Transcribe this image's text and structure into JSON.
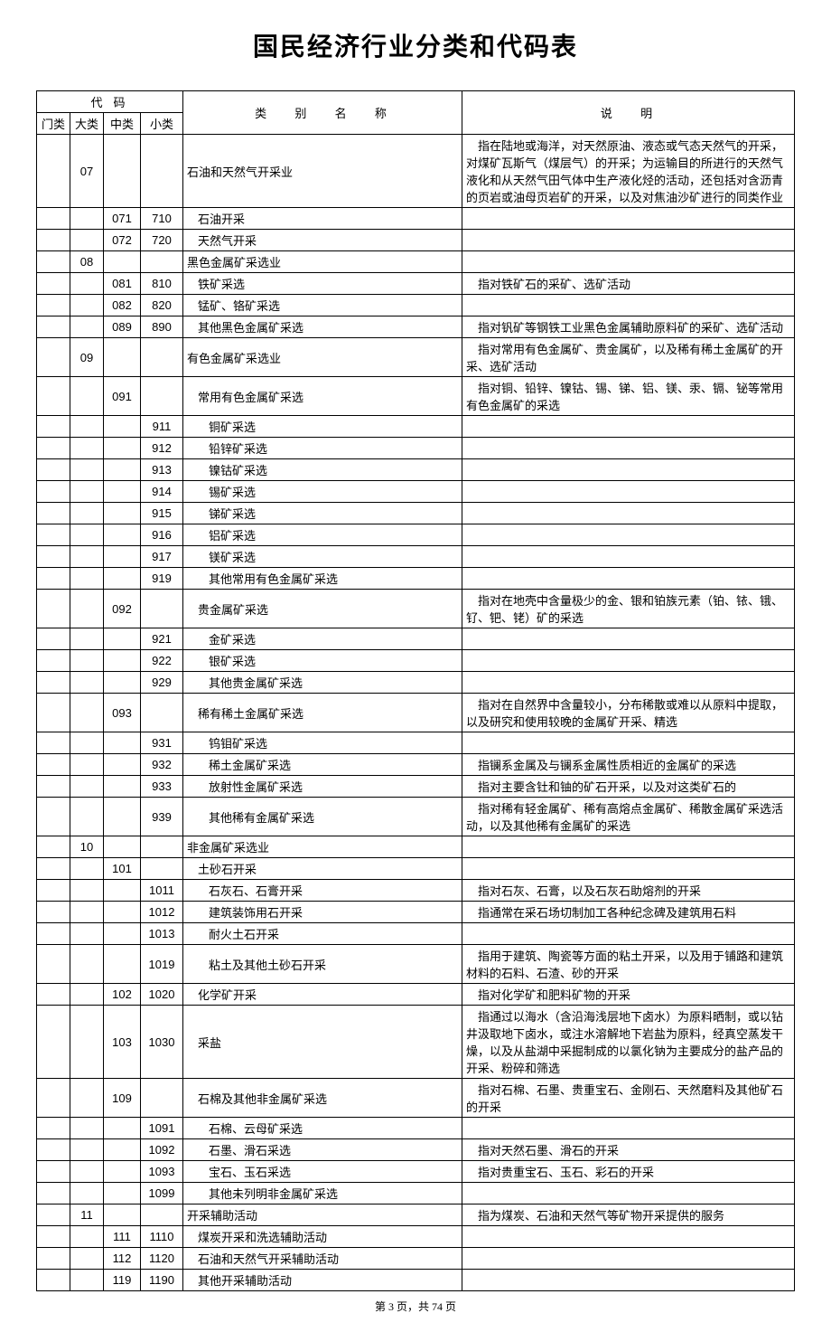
{
  "title": "国民经济行业分类和代码表",
  "headers": {
    "code_group": "代码",
    "menlei": "门类",
    "dalei": "大类",
    "zhonglei": "中类",
    "xiaolei": "小类",
    "name": "类 别 名 称",
    "desc": "说  明"
  },
  "footer": "第 3 页，共 74 页",
  "rows": [
    {
      "c1": "",
      "c2": "07",
      "c3": "",
      "c4": "",
      "name": "石油和天然气开采业",
      "indent": 0,
      "desc": "　指在陆地或海洋，对天然原油、液态或气态天然气的开采，对煤矿瓦斯气（煤层气）的开采；为运输目的所进行的天然气液化和从天然气田气体中生产液化烃的活动，还包括对含沥青的页岩或油母页岩矿的开采，以及对焦油沙矿进行的同类作业"
    },
    {
      "c1": "",
      "c2": "",
      "c3": "071",
      "c4": "710",
      "name": "石油开采",
      "indent": 1,
      "desc": ""
    },
    {
      "c1": "",
      "c2": "",
      "c3": "072",
      "c4": "720",
      "name": "天然气开采",
      "indent": 1,
      "desc": ""
    },
    {
      "c1": "",
      "c2": "08",
      "c3": "",
      "c4": "",
      "name": "黑色金属矿采选业",
      "indent": 0,
      "desc": ""
    },
    {
      "c1": "",
      "c2": "",
      "c3": "081",
      "c4": "810",
      "name": "铁矿采选",
      "indent": 1,
      "desc": "　指对铁矿石的采矿、选矿活动"
    },
    {
      "c1": "",
      "c2": "",
      "c3": "082",
      "c4": "820",
      "name": "锰矿、铬矿采选",
      "indent": 1,
      "desc": ""
    },
    {
      "c1": "",
      "c2": "",
      "c3": "089",
      "c4": "890",
      "name": "其他黑色金属矿采选",
      "indent": 1,
      "desc": "　指对钒矿等钢铁工业黑色金属辅助原料矿的采矿、选矿活动"
    },
    {
      "c1": "",
      "c2": "09",
      "c3": "",
      "c4": "",
      "name": "有色金属矿采选业",
      "indent": 0,
      "desc": "　指对常用有色金属矿、贵金属矿，以及稀有稀土金属矿的开采、选矿活动"
    },
    {
      "c1": "",
      "c2": "",
      "c3": "091",
      "c4": "",
      "name": "常用有色金属矿采选",
      "indent": 1,
      "desc": "　指对铜、铅锌、镍钴、锡、锑、铝、镁、汞、镉、铋等常用有色金属矿的采选"
    },
    {
      "c1": "",
      "c2": "",
      "c3": "",
      "c4": "911",
      "name": "铜矿采选",
      "indent": 2,
      "desc": ""
    },
    {
      "c1": "",
      "c2": "",
      "c3": "",
      "c4": "912",
      "name": "铅锌矿采选",
      "indent": 2,
      "desc": ""
    },
    {
      "c1": "",
      "c2": "",
      "c3": "",
      "c4": "913",
      "name": "镍钴矿采选",
      "indent": 2,
      "desc": ""
    },
    {
      "c1": "",
      "c2": "",
      "c3": "",
      "c4": "914",
      "name": "锡矿采选",
      "indent": 2,
      "desc": ""
    },
    {
      "c1": "",
      "c2": "",
      "c3": "",
      "c4": "915",
      "name": "锑矿采选",
      "indent": 2,
      "desc": ""
    },
    {
      "c1": "",
      "c2": "",
      "c3": "",
      "c4": "916",
      "name": "铝矿采选",
      "indent": 2,
      "desc": ""
    },
    {
      "c1": "",
      "c2": "",
      "c3": "",
      "c4": "917",
      "name": "镁矿采选",
      "indent": 2,
      "desc": ""
    },
    {
      "c1": "",
      "c2": "",
      "c3": "",
      "c4": "919",
      "name": "其他常用有色金属矿采选",
      "indent": 2,
      "desc": ""
    },
    {
      "c1": "",
      "c2": "",
      "c3": "092",
      "c4": "",
      "name": "贵金属矿采选",
      "indent": 1,
      "desc": "　指对在地壳中含量极少的金、银和铂族元素（铂、铱、锇、钌、钯、铑）矿的采选"
    },
    {
      "c1": "",
      "c2": "",
      "c3": "",
      "c4": "921",
      "name": "金矿采选",
      "indent": 2,
      "desc": ""
    },
    {
      "c1": "",
      "c2": "",
      "c3": "",
      "c4": "922",
      "name": "银矿采选",
      "indent": 2,
      "desc": ""
    },
    {
      "c1": "",
      "c2": "",
      "c3": "",
      "c4": "929",
      "name": "其他贵金属矿采选",
      "indent": 2,
      "desc": ""
    },
    {
      "c1": "",
      "c2": "",
      "c3": "093",
      "c4": "",
      "name": "稀有稀土金属矿采选",
      "indent": 1,
      "desc": "　指对在自然界中含量较小，分布稀散或难以从原料中提取，以及研究和使用较晚的金属矿开采、精选"
    },
    {
      "c1": "",
      "c2": "",
      "c3": "",
      "c4": "931",
      "name": "钨钼矿采选",
      "indent": 2,
      "desc": ""
    },
    {
      "c1": "",
      "c2": "",
      "c3": "",
      "c4": "932",
      "name": "稀土金属矿采选",
      "indent": 2,
      "desc": "　指镧系金属及与镧系金属性质相近的金属矿的采选"
    },
    {
      "c1": "",
      "c2": "",
      "c3": "",
      "c4": "933",
      "name": "放射性金属矿采选",
      "indent": 2,
      "desc": "　指对主要含钍和铀的矿石开采，以及对这类矿石的"
    },
    {
      "c1": "",
      "c2": "",
      "c3": "",
      "c4": "939",
      "name": "其他稀有金属矿采选",
      "indent": 2,
      "desc": "　指对稀有轻金属矿、稀有高熔点金属矿、稀散金属矿采选活动，以及其他稀有金属矿的采选"
    },
    {
      "c1": "",
      "c2": "10",
      "c3": "",
      "c4": "",
      "name": "非金属矿采选业",
      "indent": 0,
      "desc": ""
    },
    {
      "c1": "",
      "c2": "",
      "c3": "101",
      "c4": "",
      "name": "土砂石开采",
      "indent": 1,
      "desc": ""
    },
    {
      "c1": "",
      "c2": "",
      "c3": "",
      "c4": "1011",
      "name": "石灰石、石膏开采",
      "indent": 2,
      "desc": "　指对石灰、石膏，以及石灰石助熔剂的开采"
    },
    {
      "c1": "",
      "c2": "",
      "c3": "",
      "c4": "1012",
      "name": "建筑装饰用石开采",
      "indent": 2,
      "desc": "　指通常在采石场切制加工各种纪念碑及建筑用石料"
    },
    {
      "c1": "",
      "c2": "",
      "c3": "",
      "c4": "1013",
      "name": "耐火土石开采",
      "indent": 2,
      "desc": ""
    },
    {
      "c1": "",
      "c2": "",
      "c3": "",
      "c4": "1019",
      "name": "粘土及其他土砂石开采",
      "indent": 2,
      "desc": "　指用于建筑、陶瓷等方面的粘土开采，以及用于铺路和建筑材料的石料、石渣、砂的开采"
    },
    {
      "c1": "",
      "c2": "",
      "c3": "102",
      "c4": "1020",
      "name": "化学矿开采",
      "indent": 1,
      "desc": "　指对化学矿和肥料矿物的开采"
    },
    {
      "c1": "",
      "c2": "",
      "c3": "103",
      "c4": "1030",
      "name": "采盐",
      "indent": 1,
      "desc": "　指通过以海水（含沿海浅层地下卤水）为原料晒制，或以钻井汲取地下卤水，或注水溶解地下岩盐为原料，经真空蒸发干燥，以及从盐湖中采掘制成的以氯化钠为主要成分的盐产品的开采、粉碎和筛选"
    },
    {
      "c1": "",
      "c2": "",
      "c3": "109",
      "c4": "",
      "name": "石棉及其他非金属矿采选",
      "indent": 1,
      "desc": "　指对石棉、石墨、贵重宝石、金刚石、天然磨料及其他矿石的开采"
    },
    {
      "c1": "",
      "c2": "",
      "c3": "",
      "c4": "1091",
      "name": "石棉、云母矿采选",
      "indent": 2,
      "desc": ""
    },
    {
      "c1": "",
      "c2": "",
      "c3": "",
      "c4": "1092",
      "name": "石墨、滑石采选",
      "indent": 2,
      "desc": "　指对天然石墨、滑石的开采"
    },
    {
      "c1": "",
      "c2": "",
      "c3": "",
      "c4": "1093",
      "name": "宝石、玉石采选",
      "indent": 2,
      "desc": "　指对贵重宝石、玉石、彩石的开采"
    },
    {
      "c1": "",
      "c2": "",
      "c3": "",
      "c4": "1099",
      "name": "其他未列明非金属矿采选",
      "indent": 2,
      "desc": ""
    },
    {
      "c1": "",
      "c2": "11",
      "c3": "",
      "c4": "",
      "name": "开采辅助活动",
      "indent": 0,
      "desc": "　指为煤炭、石油和天然气等矿物开采提供的服务"
    },
    {
      "c1": "",
      "c2": "",
      "c3": "111",
      "c4": "1110",
      "name": "煤炭开采和洗选辅助活动",
      "indent": 1,
      "desc": ""
    },
    {
      "c1": "",
      "c2": "",
      "c3": "112",
      "c4": "1120",
      "name": "石油和天然气开采辅助活动",
      "indent": 1,
      "desc": ""
    },
    {
      "c1": "",
      "c2": "",
      "c3": "119",
      "c4": "1190",
      "name": "其他开采辅助活动",
      "indent": 1,
      "desc": ""
    }
  ]
}
